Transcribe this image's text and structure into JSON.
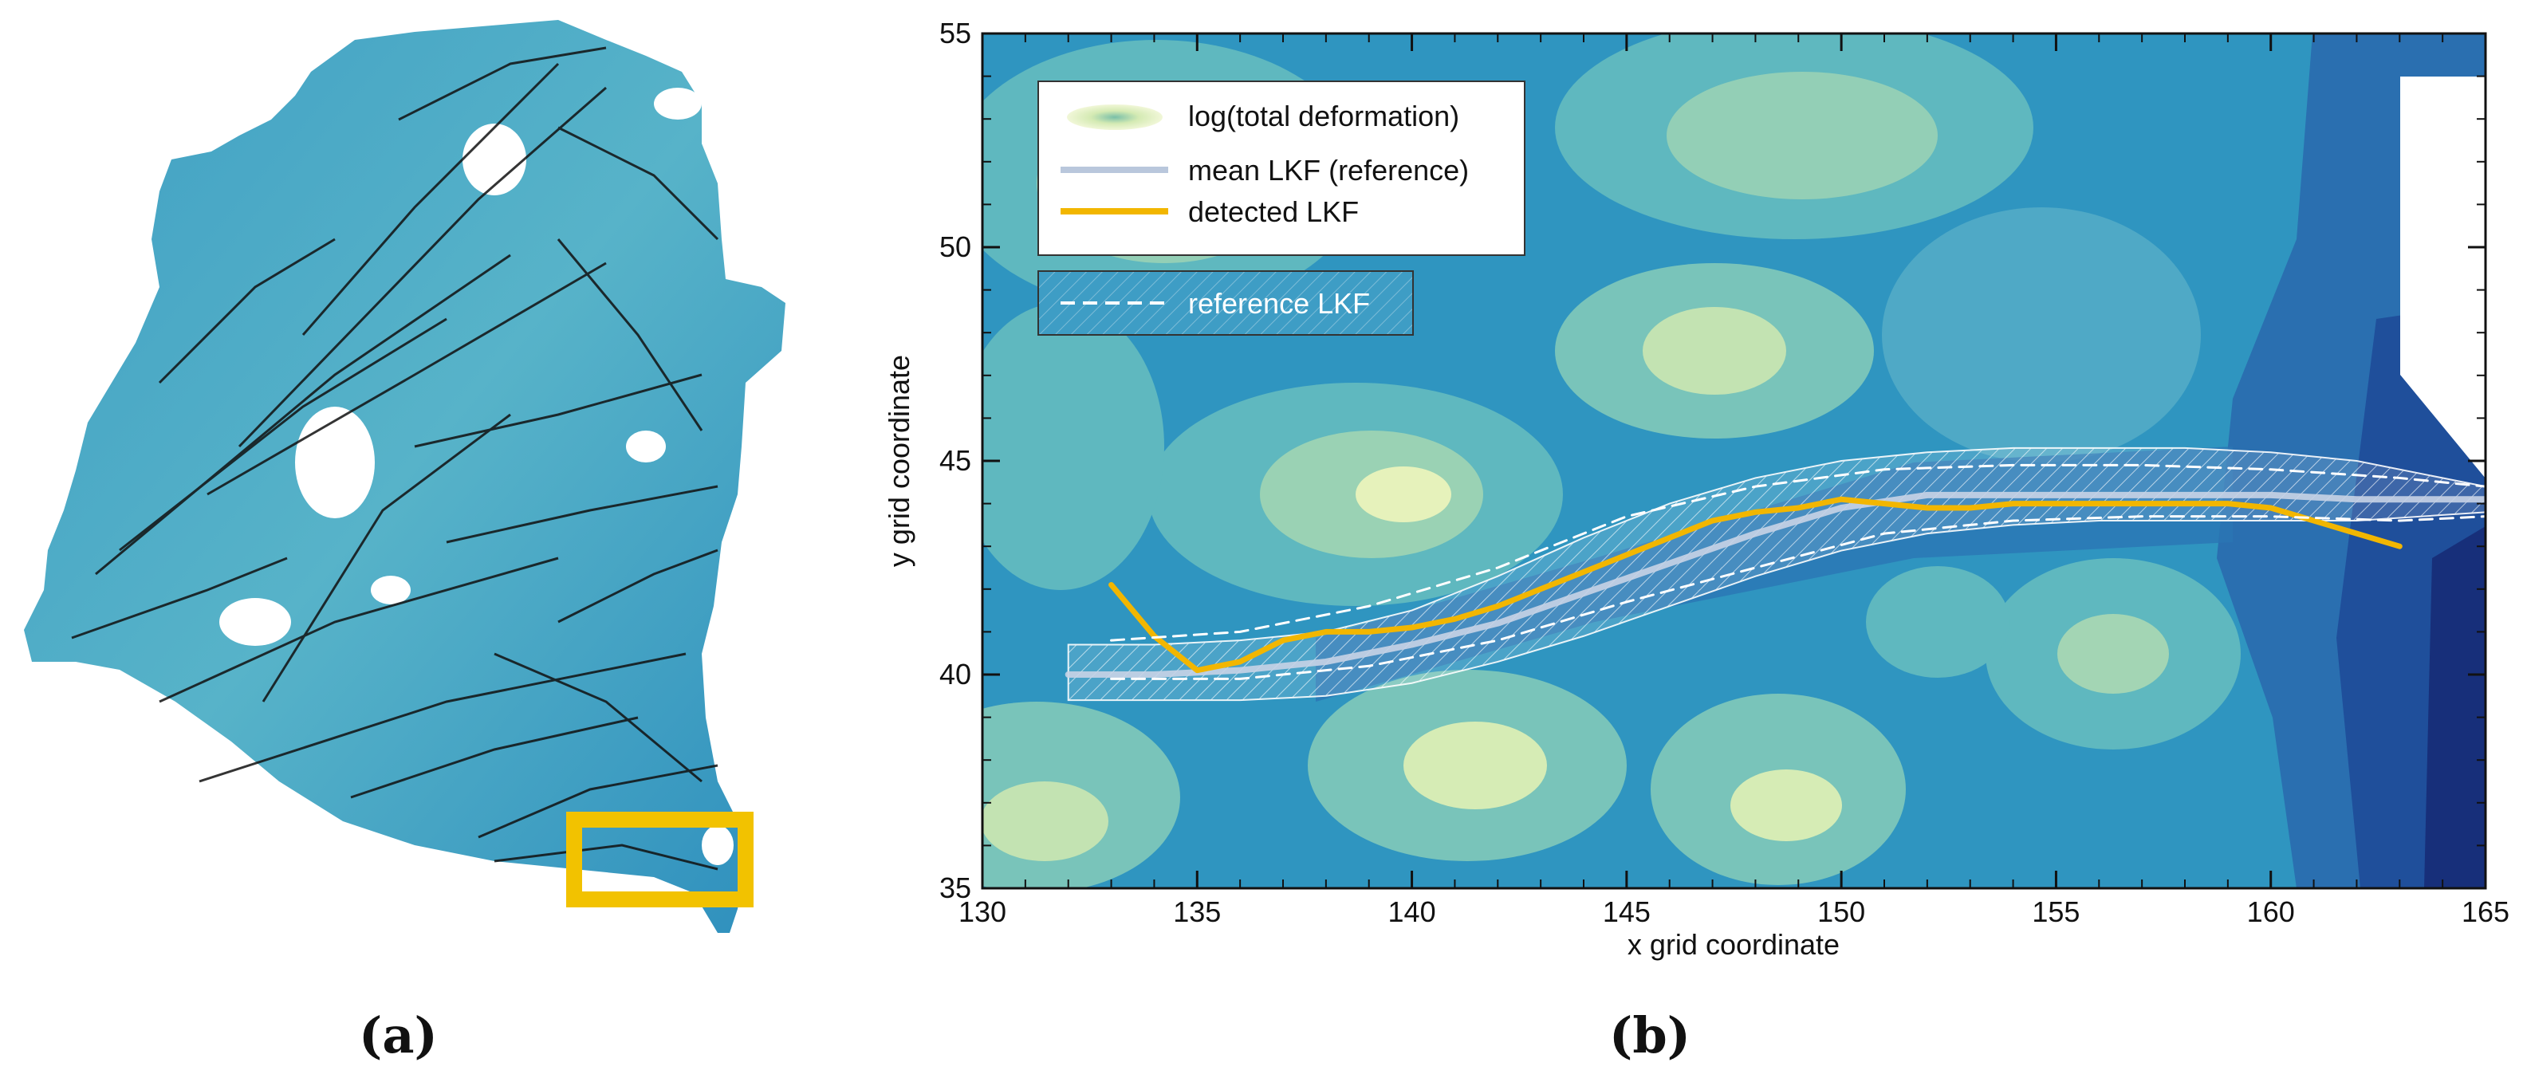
{
  "panel_a": {
    "label": "(a)",
    "highlight_color": "#f2c200"
  },
  "panel_b": {
    "label": "(b)"
  },
  "chart_data": {
    "type": "line",
    "title": "",
    "xlabel": "x grid coordinate",
    "ylabel": "y grid coordinate",
    "xlim": [
      130,
      165
    ],
    "ylim": [
      35,
      55
    ],
    "xticks": [
      130,
      135,
      140,
      145,
      150,
      155,
      160,
      165
    ],
    "yticks": [
      35,
      40,
      45,
      50,
      55
    ],
    "legend": {
      "placement": "top-left",
      "entries": [
        {
          "label": "log(total deformation)",
          "kind": "contour"
        },
        {
          "label": "mean LKF (reference)",
          "kind": "line",
          "color": "#b9c7dc"
        },
        {
          "label": "detected LKF",
          "kind": "line",
          "color": "#f2b600"
        }
      ],
      "secondary": {
        "label": "reference LKF",
        "kind": "dashed",
        "color": "#ffffff"
      }
    },
    "series": [
      {
        "name": "mean LKF (reference)",
        "color": "#c8d3e6",
        "x": [
          132,
          134,
          136,
          138,
          140,
          142,
          144,
          146,
          148,
          150,
          152,
          154,
          156,
          158,
          160,
          162,
          165
        ],
        "y": [
          40.0,
          40.0,
          40.1,
          40.3,
          40.7,
          41.2,
          41.9,
          42.6,
          43.3,
          43.9,
          44.2,
          44.2,
          44.2,
          44.2,
          44.2,
          44.1,
          44.1
        ]
      },
      {
        "name": "detected LKF",
        "color": "#f2b600",
        "x": [
          133,
          134,
          135,
          136,
          137,
          138,
          139,
          140,
          141,
          142,
          143,
          144,
          145,
          146,
          147,
          148,
          149,
          150,
          151,
          152,
          153,
          154,
          155,
          156,
          157,
          158,
          159,
          160,
          161,
          162,
          163
        ],
        "y": [
          42.1,
          40.9,
          40.1,
          40.3,
          40.8,
          41.0,
          41.0,
          41.1,
          41.3,
          41.6,
          42.0,
          42.4,
          42.8,
          43.2,
          43.6,
          43.8,
          43.9,
          44.1,
          44.0,
          43.9,
          43.9,
          44.0,
          44.0,
          44.0,
          44.0,
          44.0,
          44.0,
          43.9,
          43.6,
          43.3,
          43.0
        ]
      },
      {
        "name": "reference LKF (upper)",
        "color": "#ffffff",
        "dashed": true,
        "x": [
          133,
          136,
          139,
          142,
          145,
          148,
          151,
          154,
          157,
          160,
          163,
          165
        ],
        "y": [
          40.8,
          41.0,
          41.6,
          42.5,
          43.7,
          44.4,
          44.8,
          44.9,
          44.9,
          44.8,
          44.6,
          44.4
        ]
      },
      {
        "name": "reference LKF (lower)",
        "color": "#ffffff",
        "dashed": true,
        "x": [
          133,
          136,
          139,
          142,
          145,
          148,
          151,
          154,
          157,
          160,
          163,
          165
        ],
        "y": [
          39.9,
          39.9,
          40.2,
          40.8,
          41.7,
          42.5,
          43.3,
          43.6,
          43.7,
          43.7,
          43.6,
          43.7
        ]
      }
    ],
    "band": {
      "name": "LKF uncertainty band",
      "x": [
        132,
        134,
        136,
        138,
        140,
        142,
        144,
        146,
        148,
        150,
        152,
        154,
        156,
        158,
        160,
        162,
        165
      ],
      "upper": [
        40.7,
        40.7,
        40.8,
        41.0,
        41.5,
        42.3,
        43.2,
        44.0,
        44.6,
        45.0,
        45.2,
        45.3,
        45.3,
        45.3,
        45.2,
        45.0,
        44.4
      ],
      "lower": [
        39.4,
        39.4,
        39.4,
        39.5,
        39.8,
        40.3,
        40.9,
        41.6,
        42.3,
        42.9,
        43.3,
        43.5,
        43.6,
        43.6,
        43.6,
        43.6,
        43.8
      ]
    }
  }
}
